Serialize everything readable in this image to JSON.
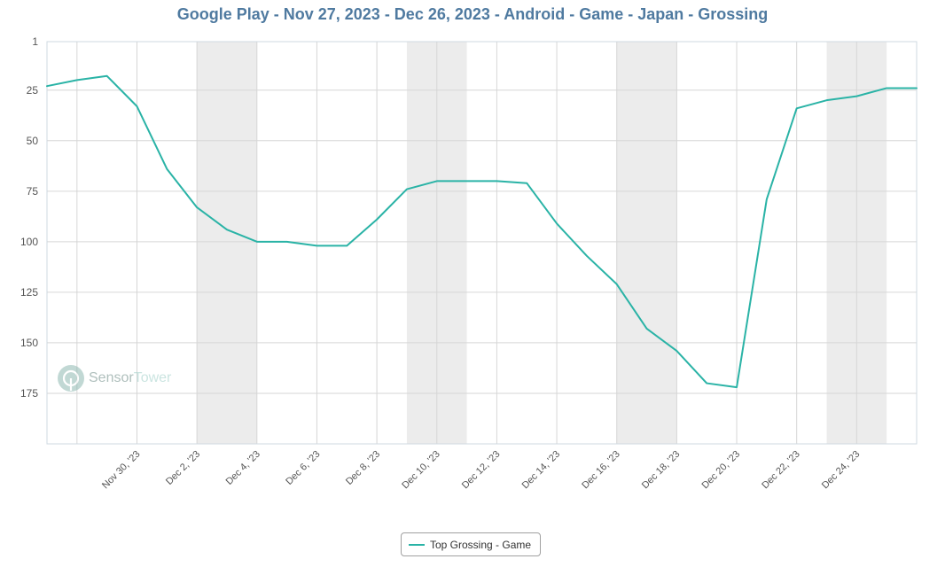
{
  "title": "Google Play - Nov 27, 2023 - Dec 26, 2023 - Android - Game - Japan - Grossing",
  "watermark": {
    "part1": "Sensor",
    "part2": "Tower",
    "icon": "sensortower-logo-icon"
  },
  "colors": {
    "line": "#2ab3a6",
    "title": "#4f7aa0",
    "weekend_band": "#ececec",
    "grid": "#d6d6d6"
  },
  "legend": {
    "label": "Top Grossing - Game"
  },
  "chart_data": {
    "type": "line",
    "title": "Google Play - Nov 27, 2023 - Dec 26, 2023 - Android - Game - Japan - Grossing",
    "xlabel": "",
    "ylabel": "",
    "y_inverted": true,
    "ylim": [
      1,
      200
    ],
    "y_ticks": [
      1,
      25,
      50,
      75,
      100,
      125,
      150,
      175
    ],
    "x_tick_labels": [
      "Nov 30, '23",
      "Dec 2, '23",
      "Dec 4, '23",
      "Dec 6, '23",
      "Dec 8, '23",
      "Dec 10, '23",
      "Dec 12, '23",
      "Dec 14, '23",
      "Dec 16, '23",
      "Dec 18, '23",
      "Dec 20, '23",
      "Dec 22, '23",
      "Dec 24, '23"
    ],
    "x_tick_dates": [
      "2023-11-30",
      "2023-12-02",
      "2023-12-04",
      "2023-12-06",
      "2023-12-08",
      "2023-12-10",
      "2023-12-12",
      "2023-12-14",
      "2023-12-16",
      "2023-12-18",
      "2023-12-20",
      "2023-12-22",
      "2023-12-24"
    ],
    "x_range": [
      "2023-11-27",
      "2023-12-26"
    ],
    "weekend_bands": [
      [
        "2023-12-02",
        "2023-12-03"
      ],
      [
        "2023-12-09",
        "2023-12-10"
      ],
      [
        "2023-12-16",
        "2023-12-17"
      ],
      [
        "2023-12-23",
        "2023-12-24"
      ]
    ],
    "grid": true,
    "legend_position": "bottom-center",
    "series": [
      {
        "name": "Top Grossing - Game",
        "x": [
          "2023-11-27",
          "2023-11-28",
          "2023-11-29",
          "2023-11-30",
          "2023-12-01",
          "2023-12-02",
          "2023-12-03",
          "2023-12-04",
          "2023-12-05",
          "2023-12-06",
          "2023-12-07",
          "2023-12-08",
          "2023-12-09",
          "2023-12-10",
          "2023-12-11",
          "2023-12-12",
          "2023-12-13",
          "2023-12-14",
          "2023-12-15",
          "2023-12-16",
          "2023-12-17",
          "2023-12-18",
          "2023-12-19",
          "2023-12-20",
          "2023-12-21",
          "2023-12-22",
          "2023-12-23",
          "2023-12-24",
          "2023-12-25",
          "2023-12-26"
        ],
        "values": [
          23,
          20,
          18,
          33,
          64,
          83,
          94,
          100,
          100,
          102,
          102,
          89,
          74,
          70,
          70,
          70,
          71,
          91,
          107,
          121,
          143,
          154,
          170,
          172,
          79,
          34,
          30,
          28,
          24,
          24
        ]
      }
    ]
  }
}
